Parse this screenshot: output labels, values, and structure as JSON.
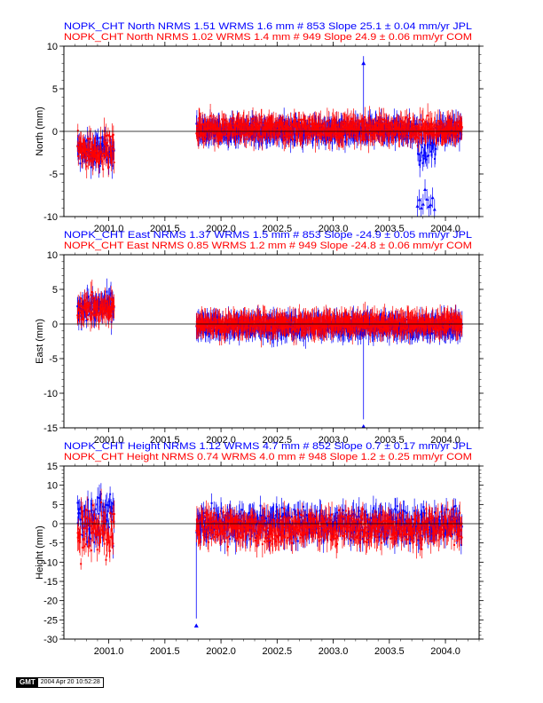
{
  "chart_data": [
    {
      "type": "scatter",
      "ylabel": "North (mm)",
      "ylim": [
        -10,
        10
      ],
      "xlim": [
        2000.6,
        2004.3
      ],
      "yticks": [
        "10",
        "5",
        "0",
        "-5",
        "-10"
      ],
      "xticks": [
        "2001.0",
        "2001.5",
        "2002.0",
        "2002.5",
        "2003.0",
        "2003.5",
        "2004.0"
      ],
      "xtick_values": [
        2001.0,
        2001.5,
        2002.0,
        2002.5,
        2003.0,
        2003.5,
        2004.0
      ],
      "ytick_values": [
        10,
        5,
        0,
        -5,
        -10
      ],
      "legend": [
        {
          "text": "NOPK_CHT North NRMS 1.51 WRMS  1.6 mm # 853 Slope   25.1 ±  0.04 mm/yr JPL",
          "color": "#0000ff"
        },
        {
          "text": "NOPK_CHT North NRMS 1.02 WRMS  1.4 mm # 949 Slope   24.9 ±  0.06 mm/yr COM",
          "color": "#ff0000"
        }
      ],
      "series": [
        {
          "name": "JPL",
          "color": "#0000ff",
          "segments": [
            [
              2000.72,
              2001.05,
              -2.4,
              1.4
            ],
            [
              2001.78,
              2004.15,
              0.1,
              0.9
            ]
          ],
          "spike": {
            "x": 2003.27,
            "y": 8.0
          },
          "dip": {
            "x": [
              2003.75,
              2003.92
            ],
            "y": -8.5
          }
        },
        {
          "name": "COM",
          "color": "#ff0000",
          "segments": [
            [
              2000.72,
              2001.05,
              -2.2,
              1.6
            ],
            [
              2001.78,
              2004.15,
              0.3,
              1.0
            ]
          ]
        }
      ]
    },
    {
      "type": "scatter",
      "ylabel": "East (mm)",
      "ylim": [
        -15,
        10
      ],
      "xlim": [
        2000.6,
        2004.3
      ],
      "yticks": [
        "10",
        "5",
        "0",
        "-5",
        "-10",
        "-15"
      ],
      "ytick_values": [
        10,
        5,
        0,
        -5,
        -10,
        -15
      ],
      "xticks": [
        "2001.0",
        "2001.5",
        "2002.0",
        "2002.5",
        "2003.0",
        "2003.5",
        "2004.0"
      ],
      "xtick_values": [
        2001.0,
        2001.5,
        2002.0,
        2002.5,
        2003.0,
        2003.5,
        2004.0
      ],
      "legend": [
        {
          "text": "NOPK_CHT East NRMS 1.37 WRMS  1.5 mm # 853 Slope  -24.9 ±  0.05 mm/yr JPL",
          "color": "#0000ff"
        },
        {
          "text": "NOPK_CHT East NRMS 0.85 WRMS  1.2 mm # 949 Slope  -24.8 ±  0.06 mm/yr COM",
          "color": "#ff0000"
        }
      ],
      "series": [
        {
          "name": "JPL",
          "color": "#0000ff",
          "segments": [
            [
              2000.72,
              2001.05,
              2.5,
              1.4
            ],
            [
              2001.78,
              2004.15,
              -0.3,
              1.0
            ]
          ],
          "spike": {
            "x": 2003.27,
            "y": -14.8
          }
        },
        {
          "name": "COM",
          "color": "#ff0000",
          "segments": [
            [
              2000.72,
              2001.05,
              2.2,
              1.6
            ],
            [
              2001.78,
              2004.15,
              0.0,
              1.0
            ]
          ]
        }
      ]
    },
    {
      "type": "scatter",
      "ylabel": "Height (mm)",
      "ylim": [
        -30,
        15
      ],
      "xlim": [
        2000.6,
        2004.3
      ],
      "yticks": [
        "15",
        "10",
        "5",
        "0",
        "-5",
        "-10",
        "-15",
        "-20",
        "-25",
        "-30"
      ],
      "ytick_values": [
        15,
        10,
        5,
        0,
        -5,
        -10,
        -15,
        -20,
        -25,
        -30
      ],
      "xticks": [
        "2001.0",
        "2001.5",
        "2002.0",
        "2002.5",
        "2003.0",
        "2003.5",
        "2004.0"
      ],
      "xtick_values": [
        2001.0,
        2001.5,
        2002.0,
        2002.5,
        2003.0,
        2003.5,
        2004.0
      ],
      "legend": [
        {
          "text": "NOPK_CHT Height NRMS 1.12 WRMS  4.7 mm # 852 Slope    0.7 ±  0.17 mm/yr JPL",
          "color": "#0000ff"
        },
        {
          "text": "NOPK_CHT Height NRMS 0.74 WRMS  4.0 mm # 948 Slope    1.2 ±  0.25 mm/yr COM",
          "color": "#ff0000"
        }
      ],
      "series": [
        {
          "name": "JPL",
          "color": "#0000ff",
          "segments": [
            [
              2000.72,
              2001.05,
              2.0,
              6.0
            ],
            [
              2001.78,
              2004.15,
              0.0,
              3.5
            ]
          ],
          "spike": {
            "x": 2001.78,
            "y": -26.5
          }
        },
        {
          "name": "COM",
          "color": "#ff0000",
          "segments": [
            [
              2000.72,
              2001.05,
              -2.0,
              6.0
            ],
            [
              2001.78,
              2004.15,
              -1.0,
              3.5
            ]
          ]
        }
      ]
    }
  ],
  "footer": {
    "logo": "GMT",
    "date": "2004 Apr 20 10:52:28"
  }
}
